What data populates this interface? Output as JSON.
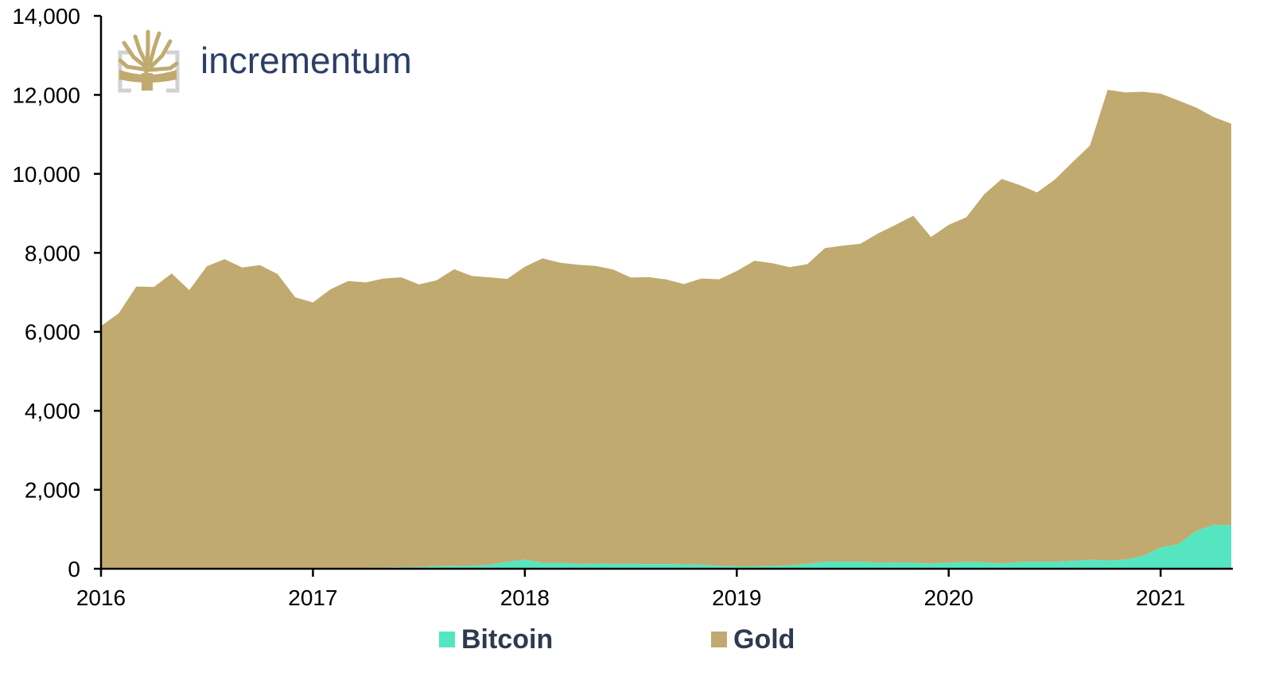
{
  "logo": {
    "text": "incrementum"
  },
  "chart_data": {
    "type": "area",
    "stacked": true,
    "x_start": "2016-01",
    "x_frequency": "monthly",
    "xlim": [
      "2016-01",
      "2021-05"
    ],
    "x_tick_labels": [
      "2016",
      "2017",
      "2018",
      "2019",
      "2020",
      "2021"
    ],
    "ylim": [
      0,
      14000
    ],
    "y_ticks": [
      0,
      2000,
      4000,
      6000,
      8000,
      10000,
      12000,
      14000
    ],
    "y_tick_labels": [
      "0",
      "2,000",
      "4,000",
      "6,000",
      "8,000",
      "10,000",
      "12,000",
      "14,000"
    ],
    "legend_position": "bottom",
    "series": [
      {
        "name": "Bitcoin",
        "color": "#55e6c1",
        "values": [
          6,
          7,
          7,
          7,
          7,
          9,
          11,
          9,
          10,
          10,
          12,
          15,
          15,
          19,
          17,
          21,
          30,
          40,
          42,
          63,
          66,
          73,
          100,
          180,
          230,
          150,
          150,
          120,
          130,
          120,
          125,
          115,
          115,
          110,
          100,
          70,
          60,
          60,
          70,
          85,
          125,
          180,
          180,
          180,
          150,
          160,
          150,
          130,
          150,
          170,
          160,
          130,
          170,
          180,
          180,
          200,
          230,
          210,
          230,
          320,
          540,
          620,
          950,
          1110,
          1100
        ]
      },
      {
        "name": "Gold",
        "color": "#c1aa6f",
        "values": [
          6140,
          6460,
          7140,
          7130,
          7470,
          7050,
          7650,
          7830,
          7620,
          7680,
          7450,
          6860,
          6730,
          7060,
          7270,
          7230,
          7320,
          7340,
          7160,
          7240,
          7520,
          7340,
          7280,
          7160,
          7420,
          7710,
          7600,
          7580,
          7540,
          7460,
          7250,
          7270,
          7210,
          7100,
          7250,
          7260,
          7480,
          7740,
          7670,
          7550,
          7590,
          7940,
          8000,
          8050,
          8340,
          8550,
          8790,
          8270,
          8560,
          8730,
          9320,
          9740,
          9550,
          9350,
          9670,
          10090,
          10490,
          11920,
          11830,
          11760,
          11490,
          11240,
          10730,
          10330,
          10170
        ]
      }
    ]
  }
}
